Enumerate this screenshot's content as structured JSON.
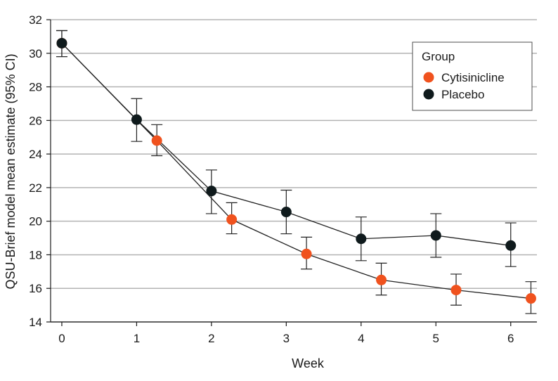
{
  "chart_data": {
    "type": "line",
    "title": "",
    "xlabel": "Week",
    "ylabel": "QSU-Brief model mean estimate (95% CI)",
    "x_ticks": [
      0,
      1,
      2,
      3,
      4,
      5,
      6
    ],
    "y_ticks": [
      14,
      16,
      18,
      20,
      22,
      24,
      26,
      28,
      30,
      32
    ],
    "xlim": [
      -0.15,
      6.35
    ],
    "ylim": [
      14,
      32
    ],
    "grid": "horizontal",
    "legend": {
      "title": "Group",
      "placement": "top-right",
      "entries": [
        "Cytisinicline",
        "Placebo"
      ]
    },
    "series": [
      {
        "name": "Cytisinicline",
        "color": "#f0521e",
        "x": [
          0,
          1.27,
          2.27,
          3.27,
          4.27,
          5.27,
          6.27
        ],
        "values": [
          30.6,
          24.8,
          20.1,
          18.05,
          16.5,
          15.9,
          15.4
        ],
        "ci_low": [
          29.8,
          23.9,
          19.25,
          17.15,
          15.6,
          15.0,
          14.5
        ],
        "ci_high": [
          31.35,
          25.75,
          21.1,
          19.05,
          17.5,
          16.85,
          16.4
        ]
      },
      {
        "name": "Placebo",
        "color": "#0f1a1c",
        "x": [
          0,
          1,
          2,
          3,
          4,
          5,
          6
        ],
        "values": [
          30.6,
          26.05,
          21.8,
          20.55,
          18.95,
          19.15,
          18.55
        ],
        "ci_low": [
          29.8,
          24.75,
          20.45,
          19.25,
          17.65,
          17.85,
          17.3
        ],
        "ci_high": [
          31.35,
          27.3,
          23.05,
          21.85,
          20.25,
          20.45,
          19.9
        ]
      }
    ]
  }
}
